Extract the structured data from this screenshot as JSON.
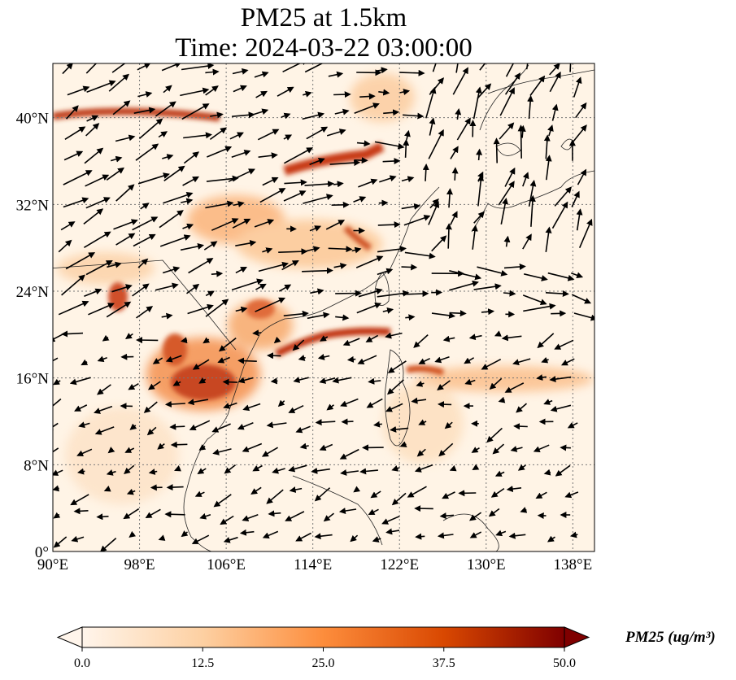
{
  "title": {
    "line1": "PM25 at 1.5km",
    "line2": "Time: 2024-03-22 03:00:00"
  },
  "map": {
    "extent_lon": [
      90,
      140
    ],
    "extent_lat": [
      0,
      45
    ],
    "lon_ticks": [
      {
        "value": 90,
        "label": "90°E"
      },
      {
        "value": 98,
        "label": "98°E"
      },
      {
        "value": 106,
        "label": "106°E"
      },
      {
        "value": 114,
        "label": "114°E"
      },
      {
        "value": 122,
        "label": "122°E"
      },
      {
        "value": 130,
        "label": "130°E"
      },
      {
        "value": 138,
        "label": "138°E"
      }
    ],
    "lat_ticks": [
      {
        "value": 0,
        "label": "0°"
      },
      {
        "value": 8,
        "label": "8°N"
      },
      {
        "value": 16,
        "label": "16°N"
      },
      {
        "value": 24,
        "label": "24°N"
      },
      {
        "value": 32,
        "label": "32°N"
      },
      {
        "value": 40,
        "label": "40°N"
      }
    ],
    "gridlines": "dotted",
    "wind_vectors": "black arrows"
  },
  "colorbar": {
    "min": 0.0,
    "max": 50.0,
    "ticks": [
      "0.0",
      "12.5",
      "25.0",
      "37.5",
      "50.0"
    ],
    "colors": [
      "#fff5eb",
      "#fdd0a2",
      "#fd8d3c",
      "#d94801",
      "#7f0000"
    ],
    "extend": "both",
    "units_label": "PM25 (ug/m³)"
  }
}
